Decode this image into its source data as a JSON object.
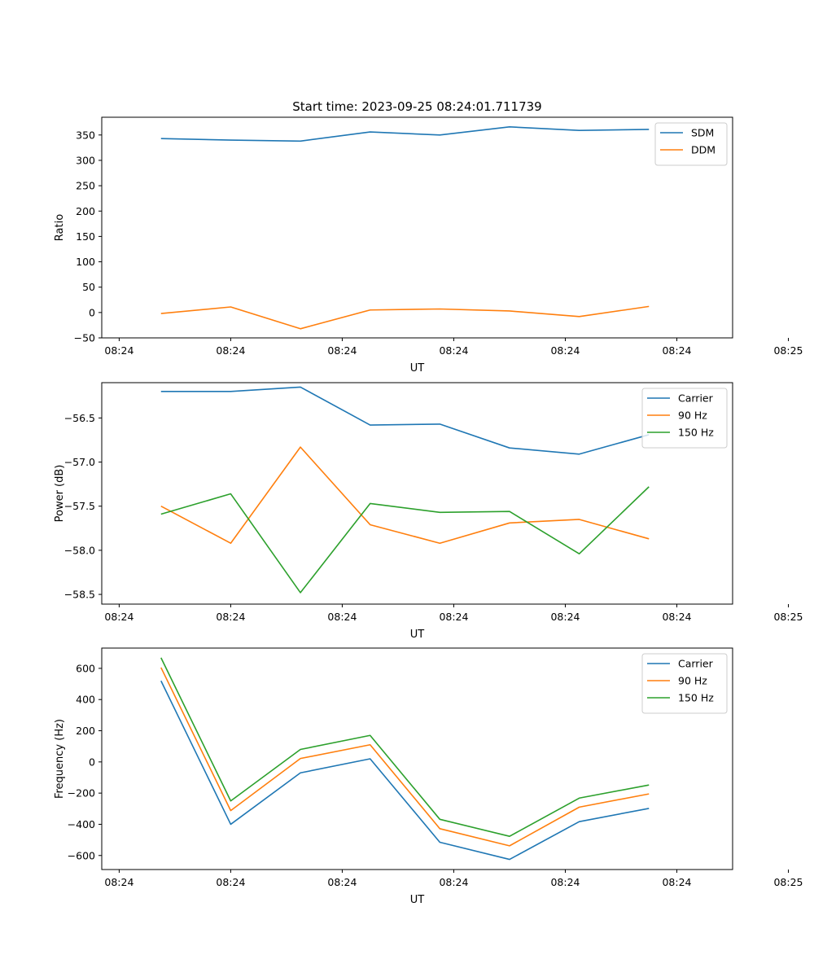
{
  "figure": {
    "title": "Start time: 2023-09-25 08:24:01.711739"
  },
  "chart_data": [
    {
      "type": "line",
      "title": "Start time: 2023-09-25 08:24:01.711739",
      "xlabel": "UT",
      "ylabel": "Ratio",
      "xlim": [
        -0.85,
        8.2
      ],
      "ylim": [
        -50,
        385
      ],
      "xtick_values": [
        -0.6,
        1.0,
        2.6,
        4.2,
        5.8,
        7.4,
        9.0
      ],
      "xtick_labels": [
        "08:24",
        "08:24",
        "08:24",
        "08:24",
        "08:24",
        "08:24",
        "08:25"
      ],
      "ytick_values": [
        -50,
        0,
        50,
        100,
        150,
        200,
        250,
        300,
        350
      ],
      "ytick_labels": [
        "−50",
        "0",
        "50",
        "100",
        "150",
        "200",
        "250",
        "300",
        "350"
      ],
      "legend": "top-right",
      "x": [
        0,
        1,
        2,
        3,
        4,
        5,
        6,
        7
      ],
      "series": [
        {
          "name": "SDM",
          "color": "#1f77b4",
          "values": [
            343,
            340,
            338,
            356,
            350,
            366,
            359,
            361
          ]
        },
        {
          "name": "DDM",
          "color": "#ff7f0e",
          "values": [
            -2,
            11,
            -32,
            5,
            7,
            3,
            -8,
            12
          ]
        }
      ]
    },
    {
      "type": "line",
      "title": "",
      "xlabel": "UT",
      "ylabel": "Power (dB)",
      "xlim": [
        -0.85,
        8.2
      ],
      "ylim": [
        -58.61,
        -56.1
      ],
      "xtick_values": [
        -0.6,
        1.0,
        2.6,
        4.2,
        5.8,
        7.4,
        9.0
      ],
      "xtick_labels": [
        "08:24",
        "08:24",
        "08:24",
        "08:24",
        "08:24",
        "08:24",
        "08:25"
      ],
      "ytick_values": [
        -58.5,
        -58.0,
        -57.5,
        -57.0,
        -56.5
      ],
      "ytick_labels": [
        "−58.5",
        "−58.0",
        "−57.5",
        "−57.0",
        "−56.5"
      ],
      "legend": "top-right",
      "x": [
        0,
        1,
        2,
        3,
        4,
        5,
        6,
        7
      ],
      "series": [
        {
          "name": "Carrier",
          "color": "#1f77b4",
          "values": [
            -56.2,
            -56.2,
            -56.15,
            -56.58,
            -56.57,
            -56.84,
            -56.91,
            -56.69
          ]
        },
        {
          "name": "90 Hz",
          "color": "#ff7f0e",
          "values": [
            -57.5,
            -57.92,
            -56.83,
            -57.71,
            -57.92,
            -57.69,
            -57.65,
            -57.87
          ]
        },
        {
          "name": "150 Hz",
          "color": "#2ca02c",
          "values": [
            -57.59,
            -57.36,
            -58.48,
            -57.47,
            -57.57,
            -57.56,
            -58.04,
            -57.28
          ]
        }
      ]
    },
    {
      "type": "line",
      "title": "",
      "xlabel": "UT",
      "ylabel": "Frequency (Hz)",
      "xlim": [
        -0.85,
        8.2
      ],
      "ylim": [
        -690,
        730
      ],
      "xtick_values": [
        -0.6,
        1.0,
        2.6,
        4.2,
        5.8,
        7.4,
        9.0
      ],
      "xtick_labels": [
        "08:24",
        "08:24",
        "08:24",
        "08:24",
        "08:24",
        "08:24",
        "08:25"
      ],
      "ytick_values": [
        -600,
        -400,
        -200,
        0,
        200,
        400,
        600
      ],
      "ytick_labels": [
        "−600",
        "−400",
        "−200",
        "0",
        "200",
        "400",
        "600"
      ],
      "legend": "top-right",
      "x": [
        0,
        1,
        2,
        3,
        4,
        5,
        6,
        7
      ],
      "series": [
        {
          "name": "Carrier",
          "color": "#1f77b4",
          "values": [
            520,
            -400,
            -70,
            20,
            -515,
            -625,
            -383,
            -298
          ]
        },
        {
          "name": "90 Hz",
          "color": "#ff7f0e",
          "values": [
            605,
            -312,
            22,
            110,
            -428,
            -538,
            -290,
            -205
          ]
        },
        {
          "name": "150 Hz",
          "color": "#2ca02c",
          "values": [
            668,
            -250,
            80,
            170,
            -368,
            -477,
            -232,
            -148
          ]
        }
      ]
    }
  ]
}
